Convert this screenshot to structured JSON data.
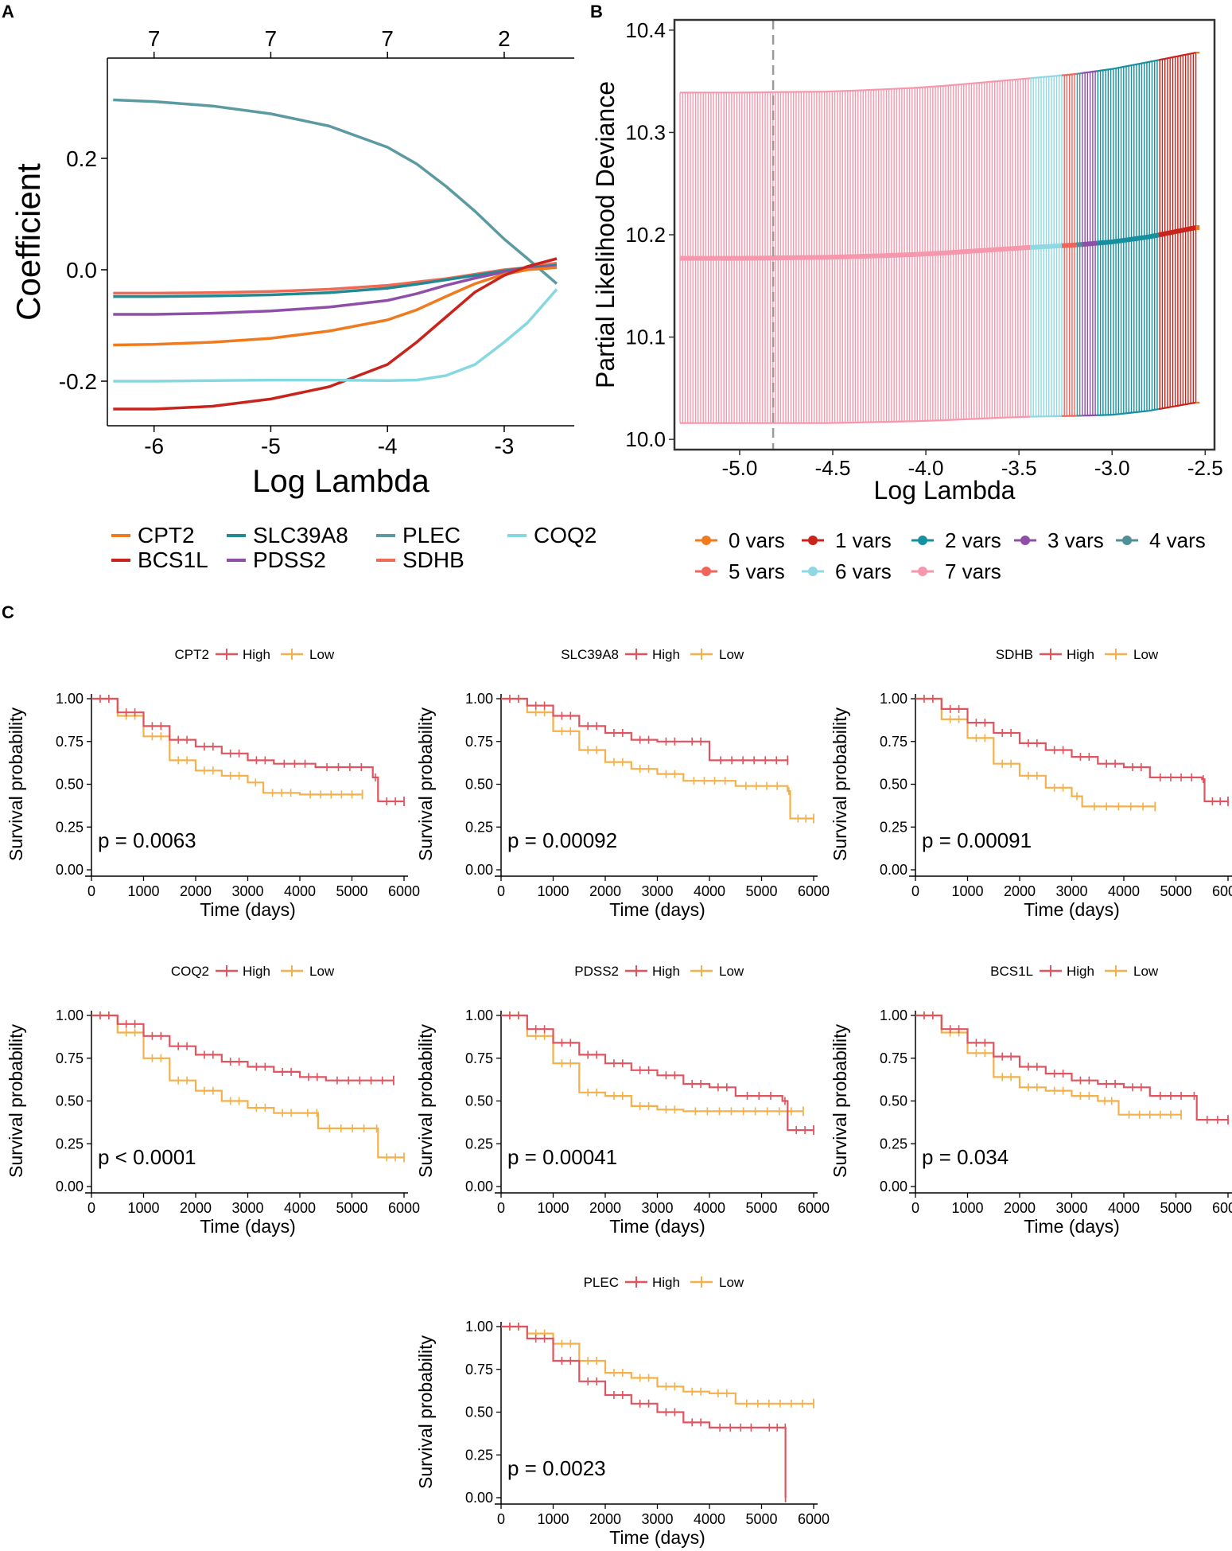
{
  "panel_labels": {
    "a": "A",
    "b": "B",
    "c": "C"
  },
  "colors": {
    "high": "#e0545f",
    "low": "#f4b04a",
    "CPT2": "#f07a1e",
    "BCS1L": "#c8241c",
    "SLC39A8": "#1f8a92",
    "PDSS2": "#8f4fa8",
    "PLEC": "#5b9aa0",
    "SDHB": "#ef6a55",
    "COQ2": "#86d8e0",
    "vars0": "#f07a1e",
    "vars1": "#c8241c",
    "vars2": "#16909e",
    "vars3": "#8f4fa8",
    "vars4": "#4f8f95",
    "vars5": "#f2645a",
    "vars6": "#8fd8e3",
    "vars7": "#f598ad"
  },
  "chart_data": [
    {
      "id": "A",
      "type": "line",
      "title": "",
      "xlabel": "Log Lambda",
      "ylabel": "Coefficient",
      "xlim": [
        -6.4,
        -2.4
      ],
      "ylim": [
        -0.28,
        0.38
      ],
      "xticks": [
        -6,
        -5,
        -4,
        -3
      ],
      "xtick_labels": [
        "-6",
        "-5",
        "-4",
        "-3"
      ],
      "yticks": [
        0.2,
        0.0,
        -0.2
      ],
      "ytick_labels": [
        "0.2",
        "0.0",
        "-0.2"
      ],
      "top_axis": {
        "positions": [
          -6,
          -5,
          -4,
          -3
        ],
        "labels": [
          "7",
          "7",
          "7",
          "2"
        ]
      },
      "x": [
        -6.35,
        -6.0,
        -5.5,
        -5.0,
        -4.5,
        -4.0,
        -3.75,
        -3.5,
        -3.25,
        -3.0,
        -2.8,
        -2.55
      ],
      "series": [
        {
          "name": "PLEC",
          "values": [
            0.305,
            0.302,
            0.294,
            0.28,
            0.258,
            0.22,
            0.19,
            0.15,
            0.105,
            0.055,
            0.02,
            -0.025
          ]
        },
        {
          "name": "SDHB",
          "values": [
            -0.042,
            -0.042,
            -0.041,
            -0.039,
            -0.035,
            -0.028,
            -0.022,
            -0.016,
            -0.008,
            0.0,
            0.004,
            0.012
          ]
        },
        {
          "name": "SLC39A8",
          "values": [
            -0.048,
            -0.048,
            -0.047,
            -0.045,
            -0.041,
            -0.033,
            -0.026,
            -0.018,
            -0.01,
            -0.002,
            0.004,
            0.008
          ]
        },
        {
          "name": "PDSS2",
          "values": [
            -0.08,
            -0.08,
            -0.078,
            -0.074,
            -0.067,
            -0.055,
            -0.043,
            -0.028,
            -0.015,
            -0.004,
            0.003,
            0.005
          ]
        },
        {
          "name": "CPT2",
          "values": [
            -0.135,
            -0.134,
            -0.13,
            -0.123,
            -0.11,
            -0.09,
            -0.072,
            -0.048,
            -0.025,
            -0.008,
            0.0,
            0.004
          ]
        },
        {
          "name": "BCS1L",
          "values": [
            -0.25,
            -0.25,
            -0.245,
            -0.232,
            -0.21,
            -0.17,
            -0.13,
            -0.085,
            -0.04,
            -0.01,
            0.006,
            0.02
          ]
        },
        {
          "name": "COQ2",
          "values": [
            -0.2,
            -0.2,
            -0.199,
            -0.198,
            -0.198,
            -0.199,
            -0.198,
            -0.19,
            -0.17,
            -0.13,
            -0.095,
            -0.035
          ]
        }
      ],
      "legend": {
        "placement": "bottom",
        "rows": [
          [
            "CPT2",
            "SLC39A8",
            "PLEC",
            "COQ2"
          ],
          [
            "BCS1L",
            "PDSS2",
            "SDHB"
          ]
        ]
      }
    },
    {
      "id": "B",
      "type": "scatter",
      "title": "",
      "xlabel": "Log Lambda",
      "ylabel": "Partial Likelihood Deviance",
      "xlim": [
        -5.35,
        -2.45
      ],
      "ylim": [
        9.99,
        10.41
      ],
      "xticks": [
        -5.0,
        -4.5,
        -4.0,
        -3.5,
        -3.0,
        -2.5
      ],
      "xtick_labels": [
        "-5.0",
        "-4.5",
        "-4.0",
        "-3.5",
        "-3.0",
        "-2.5"
      ],
      "yticks": [
        10.0,
        10.1,
        10.2,
        10.3,
        10.4
      ],
      "ytick_labels": [
        "10.0",
        "10.1",
        "10.2",
        "10.3",
        "10.4"
      ],
      "vline_x": -4.82,
      "mean_curve": {
        "x": [
          -5.32,
          -5.0,
          -4.5,
          -4.0,
          -3.5,
          -3.2,
          -3.0,
          -2.8,
          -2.55
        ],
        "y": [
          10.177,
          10.177,
          10.178,
          10.181,
          10.187,
          10.19,
          10.193,
          10.198,
          10.207
        ]
      },
      "upper_curve": {
        "x": [
          -5.32,
          -5.0,
          -4.5,
          -4.0,
          -3.5,
          -3.2,
          -3.0,
          -2.8,
          -2.55
        ],
        "y": [
          10.339,
          10.339,
          10.34,
          10.344,
          10.352,
          10.357,
          10.362,
          10.369,
          10.378
        ]
      },
      "lower_curve": {
        "x": [
          -5.32,
          -5.0,
          -4.5,
          -4.0,
          -3.5,
          -3.2,
          -3.0,
          -2.8,
          -2.55
        ],
        "y": [
          10.016,
          10.016,
          10.016,
          10.018,
          10.022,
          10.023,
          10.024,
          10.028,
          10.036
        ]
      },
      "segments": [
        {
          "vars": "7 vars",
          "from": -5.32,
          "to": -3.44
        },
        {
          "vars": "6 vars",
          "from": -3.44,
          "to": -3.27
        },
        {
          "vars": "5 vars",
          "from": -3.27,
          "to": -3.19
        },
        {
          "vars": "4 vars",
          "from": -3.19,
          "to": -3.16
        },
        {
          "vars": "3 vars",
          "from": -3.16,
          "to": -3.08
        },
        {
          "vars": "2 vars",
          "from": -3.08,
          "to": -2.75
        },
        {
          "vars": "1 vars",
          "from": -2.75,
          "to": -2.55
        },
        {
          "vars": "0 vars",
          "from": -2.55,
          "to": -2.53
        }
      ],
      "legend": {
        "placement": "bottom",
        "rows": [
          [
            "0 vars",
            "1 vars",
            "2 vars",
            "3 vars",
            "4 vars"
          ],
          [
            "5 vars",
            "6 vars",
            "7 vars"
          ]
        ]
      }
    },
    {
      "id": "C",
      "type": "line",
      "subtype": "kaplan-meier",
      "xlabel": "Time (days)",
      "ylabel": "Survival probability",
      "xlim": [
        0,
        6000
      ],
      "ylim": [
        0,
        1
      ],
      "xticks": [
        0,
        1000,
        2000,
        3000,
        4000,
        5000,
        6000
      ],
      "yticks": [
        0.0,
        0.25,
        0.5,
        0.75,
        1.0
      ],
      "ytick_labels": [
        "0.00",
        "0.25",
        "0.50",
        "0.75",
        "1.00"
      ],
      "strata_labels": [
        "High",
        "Low"
      ],
      "plots": [
        {
          "gene": "CPT2",
          "pvalue": "p = 0.0063",
          "high": {
            "x": [
              0,
              500,
              1000,
              1500,
              2000,
              2500,
              3000,
              3500,
              4300,
              5400,
              5500,
              6000
            ],
            "y": [
              1.0,
              0.92,
              0.84,
              0.76,
              0.72,
              0.68,
              0.64,
              0.62,
              0.6,
              0.54,
              0.4,
              0.4
            ]
          },
          "low": {
            "x": [
              0,
              500,
              1000,
              1500,
              2000,
              2500,
              3000,
              3300,
              4000,
              5200
            ],
            "y": [
              1.0,
              0.9,
              0.78,
              0.64,
              0.58,
              0.55,
              0.51,
              0.45,
              0.44,
              0.44
            ]
          }
        },
        {
          "gene": "SLC39A8",
          "pvalue": "p = 0.00092",
          "high": {
            "x": [
              0,
              500,
              1000,
              1500,
              2000,
              2500,
              3000,
              3500,
              4000,
              5500
            ],
            "y": [
              1.0,
              0.96,
              0.9,
              0.84,
              0.8,
              0.76,
              0.75,
              0.75,
              0.64,
              0.64
            ]
          },
          "low": {
            "x": [
              0,
              500,
              1000,
              1500,
              2000,
              2500,
              3000,
              3500,
              4500,
              5500,
              5550,
              6000
            ],
            "y": [
              1.0,
              0.92,
              0.81,
              0.7,
              0.63,
              0.59,
              0.56,
              0.52,
              0.49,
              0.46,
              0.3,
              0.3
            ]
          }
        },
        {
          "gene": "SDHB",
          "pvalue": "p = 0.00091",
          "high": {
            "x": [
              0,
              500,
              1000,
              1500,
              2000,
              2500,
              3000,
              3500,
              4000,
              4500,
              5500,
              5550,
              6000
            ],
            "y": [
              1.0,
              0.94,
              0.86,
              0.8,
              0.74,
              0.7,
              0.66,
              0.62,
              0.6,
              0.54,
              0.53,
              0.4,
              0.4
            ]
          },
          "low": {
            "x": [
              0,
              500,
              1000,
              1500,
              2000,
              2500,
              3000,
              3200,
              4600
            ],
            "y": [
              1.0,
              0.88,
              0.77,
              0.62,
              0.55,
              0.48,
              0.43,
              0.37,
              0.37
            ]
          }
        },
        {
          "gene": "COQ2",
          "pvalue": "p < 0.0001",
          "high": {
            "x": [
              0,
              500,
              1000,
              1500,
              2000,
              2500,
              3000,
              3500,
              4000,
              4500,
              5800
            ],
            "y": [
              1.0,
              0.95,
              0.88,
              0.82,
              0.77,
              0.73,
              0.7,
              0.67,
              0.64,
              0.62,
              0.62
            ]
          },
          "low": {
            "x": [
              0,
              500,
              1000,
              1500,
              2000,
              2500,
              3000,
              3500,
              4000,
              4300,
              4350,
              5450,
              5500,
              6000
            ],
            "y": [
              1.0,
              0.9,
              0.75,
              0.62,
              0.56,
              0.5,
              0.46,
              0.43,
              0.43,
              0.43,
              0.34,
              0.34,
              0.17,
              0.17
            ]
          }
        },
        {
          "gene": "PDSS2",
          "pvalue": "p = 0.00041",
          "high": {
            "x": [
              0,
              500,
              1000,
              1500,
              2000,
              2500,
              3000,
              3500,
              4000,
              4500,
              5400,
              5500,
              6000
            ],
            "y": [
              1.0,
              0.92,
              0.84,
              0.77,
              0.72,
              0.68,
              0.65,
              0.6,
              0.58,
              0.53,
              0.5,
              0.33,
              0.33
            ]
          },
          "low": {
            "x": [
              0,
              500,
              1000,
              1500,
              2000,
              2500,
              3000,
              3500,
              5800
            ],
            "y": [
              1.0,
              0.88,
              0.72,
              0.55,
              0.53,
              0.47,
              0.45,
              0.44,
              0.44
            ]
          }
        },
        {
          "gene": "BCS1L",
          "pvalue": "p = 0.034",
          "high": {
            "x": [
              0,
              500,
              1000,
              1500,
              2000,
              2500,
              3000,
              3500,
              4000,
              4500,
              5300,
              5400,
              6000
            ],
            "y": [
              1.0,
              0.92,
              0.84,
              0.76,
              0.7,
              0.66,
              0.62,
              0.6,
              0.58,
              0.53,
              0.53,
              0.39,
              0.39
            ]
          },
          "low": {
            "x": [
              0,
              500,
              1000,
              1500,
              2000,
              2500,
              3000,
              3500,
              3900,
              5100
            ],
            "y": [
              1.0,
              0.9,
              0.78,
              0.64,
              0.58,
              0.56,
              0.53,
              0.5,
              0.42,
              0.42
            ]
          }
        },
        {
          "gene": "PLEC",
          "pvalue": "p = 0.0023",
          "high": {
            "x": [
              0,
              500,
              1000,
              1500,
              2000,
              2500,
              3000,
              3500,
              4000,
              5000,
              5450,
              5460
            ],
            "y": [
              1.0,
              0.93,
              0.8,
              0.68,
              0.6,
              0.55,
              0.5,
              0.44,
              0.41,
              0.41,
              0.41,
              0.0
            ]
          },
          "low": {
            "x": [
              0,
              500,
              1000,
              1500,
              2000,
              2500,
              3000,
              3500,
              4000,
              4500,
              6000
            ],
            "y": [
              1.0,
              0.96,
              0.9,
              0.8,
              0.73,
              0.7,
              0.65,
              0.62,
              0.61,
              0.55,
              0.55
            ]
          }
        }
      ]
    }
  ]
}
